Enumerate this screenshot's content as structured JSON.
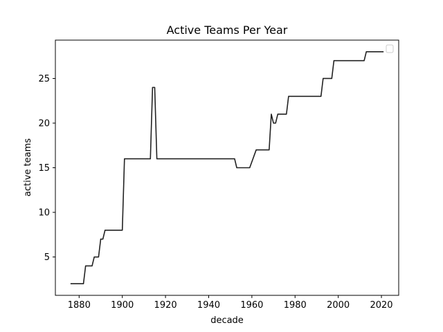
{
  "chart_data": {
    "type": "line",
    "title": "Active Teams Per Year",
    "xlabel": "decade",
    "ylabel": "active teams",
    "xlim": [
      1869,
      2028
    ],
    "ylim": [
      0.7,
      29.3
    ],
    "xticks": [
      1880,
      1900,
      1920,
      1940,
      1960,
      1980,
      2000,
      2020
    ],
    "yticks": [
      5,
      10,
      15,
      20,
      25
    ],
    "grid": false,
    "legend": {
      "placement": "top-right",
      "entries": []
    },
    "series": [
      {
        "color": "#222222",
        "x": [
          1876,
          1882,
          1883,
          1886,
          1887,
          1889,
          1890,
          1891,
          1892,
          1900,
          1901,
          1913,
          1914,
          1915,
          1916,
          1952,
          1953,
          1959,
          1962,
          1968,
          1969,
          1970,
          1971,
          1972,
          1976,
          1977,
          1992,
          1993,
          1997,
          1998,
          2012,
          2013,
          2021
        ],
        "y": [
          2,
          2,
          4,
          4,
          5,
          5,
          7,
          7,
          8,
          8,
          16,
          16,
          24,
          24,
          16,
          16,
          15,
          15,
          17,
          17,
          21,
          20,
          20,
          21,
          21,
          23,
          23,
          25,
          25,
          27,
          27,
          28,
          28
        ]
      }
    ]
  }
}
